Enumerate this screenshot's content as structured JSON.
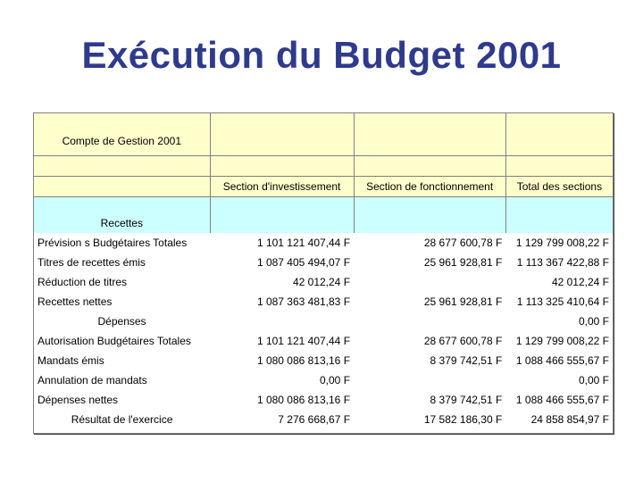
{
  "title": "Exécution du Budget 2001",
  "table": {
    "caption": "Compte de Gestion 2001",
    "columns": [
      "Section d'investissement",
      "Section de fonctionnement",
      "Total des sections"
    ],
    "recettes_heading": "Recettes",
    "rows": [
      {
        "label": "Prévision s Budgétaires Totales",
        "inv": "1 101 121 407,44 F",
        "fon": "28 677 600,78 F",
        "tot": "1 129 799 008,22 F"
      },
      {
        "label": "Titres de recettes émis",
        "inv": "1 087 405 494,07 F",
        "fon": "25 961 928,81 F",
        "tot": "1 113 367 422,88 F"
      },
      {
        "label": "Réduction de titres",
        "inv": "42 012,24 F",
        "fon": "",
        "tot": "42 012,24 F"
      },
      {
        "label": "Recettes nettes",
        "inv": "1 087 363 481,83 F",
        "fon": "25 961 928,81 F",
        "tot": "1 113 325 410,64 F"
      },
      {
        "label": "Dépenses",
        "inv": "",
        "fon": "",
        "tot": "0,00 F"
      },
      {
        "label": "Autorisation Budgétaires Totales",
        "inv": "1 101 121 407,44 F",
        "fon": "28 677 600,78 F",
        "tot": "1 129 799 008,22 F"
      },
      {
        "label": "Mandats émis",
        "inv": "1 080 086 813,16 F",
        "fon": "8 379 742,51 F",
        "tot": "1 088 466 555,67 F"
      },
      {
        "label": "Annulation de mandats",
        "inv": "0,00 F",
        "fon": "",
        "tot": "0,00 F"
      },
      {
        "label": "Dépenses nettes",
        "inv": "1 080 086 813,16 F",
        "fon": "8 379 742,51 F",
        "tot": "1 088 466 555,67 F"
      },
      {
        "label": "Résultat de l'exercice",
        "inv": "7 276 668,67 F",
        "fon": "17 582 186,30 F",
        "tot": "24 858 854,97 F"
      }
    ]
  }
}
